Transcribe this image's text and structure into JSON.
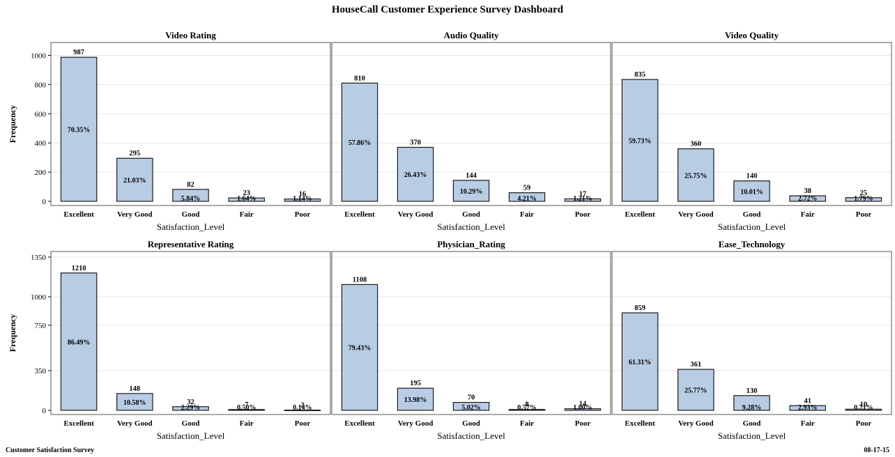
{
  "title": "HouseCall Customer Experience Survey Dashboard",
  "footer": {
    "left": "Customer Satisfaction Survey",
    "right": "08-17-15"
  },
  "colors": {
    "bar_fill": "#b8cce4",
    "bar_stroke": "#1a1a1a",
    "panel_border": "#555555",
    "grid": "#e6e6e6"
  },
  "chart_data": [
    {
      "type": "bar",
      "title": "Video Rating",
      "xlabel": "Satisfaction_Level",
      "ylabel": "Frequency",
      "categories": [
        "Excellent",
        "Very Good",
        "Good",
        "Fair",
        "Poor"
      ],
      "values": [
        987,
        295,
        82,
        23,
        16
      ],
      "percent_labels": [
        "70.35%",
        "21.03%",
        "5.84%",
        "1.64%",
        "1.14%"
      ],
      "ylim": [
        0,
        1050
      ],
      "yticks": [
        0,
        200,
        400,
        600,
        800,
        1000
      ]
    },
    {
      "type": "bar",
      "title": "Audio Quality",
      "xlabel": "Satisfaction_Level",
      "ylabel": "Frequency",
      "categories": [
        "Excellent",
        "Very Good",
        "Good",
        "Fair",
        "Poor"
      ],
      "values": [
        810,
        370,
        144,
        59,
        17
      ],
      "percent_labels": [
        "57.86%",
        "26.43%",
        "10.29%",
        "4.21%",
        "1.21%"
      ],
      "ylim": [
        0,
        1050
      ],
      "yticks": [
        0,
        200,
        400,
        600,
        800,
        1000
      ]
    },
    {
      "type": "bar",
      "title": "Video Quality",
      "xlabel": "Satisfaction_Level",
      "ylabel": "Frequency",
      "categories": [
        "Excellent",
        "Very Good",
        "Good",
        "Fair",
        "Poor"
      ],
      "values": [
        835,
        360,
        140,
        38,
        25
      ],
      "percent_labels": [
        "59.73%",
        "25.75%",
        "10.01%",
        "2.72%",
        "1.79%"
      ],
      "ylim": [
        0,
        1050
      ],
      "yticks": [
        0,
        200,
        400,
        600,
        800,
        1000
      ]
    },
    {
      "type": "bar",
      "title": "Representative Rating",
      "xlabel": "Satisfaction_Level",
      "ylabel": "Frequency",
      "categories": [
        "Excellent",
        "Very Good",
        "Good",
        "Fair",
        "Poor"
      ],
      "values": [
        1210,
        148,
        32,
        7,
        2
      ],
      "percent_labels": [
        "86.49%",
        "10.58%",
        "2.29%",
        "0.50%",
        "0.14%"
      ],
      "ylim": [
        0,
        1350
      ],
      "yticks": [
        0,
        350,
        750,
        1000,
        1350
      ]
    },
    {
      "type": "bar",
      "title": "Physician_Rating",
      "xlabel": "Satisfaction_Level",
      "ylabel": "Frequency",
      "categories": [
        "Excellent",
        "Very Good",
        "Good",
        "Fair",
        "Poor"
      ],
      "values": [
        1108,
        195,
        70,
        8,
        14
      ],
      "percent_labels": [
        "79.43%",
        "13.98%",
        "5.02%",
        "0.57%",
        "1.00%"
      ],
      "ylim": [
        0,
        1350
      ],
      "yticks": [
        0,
        350,
        750,
        1000,
        1350
      ]
    },
    {
      "type": "bar",
      "title": "Ease_Technology",
      "xlabel": "Satisfaction_Level",
      "ylabel": "Frequency",
      "categories": [
        "Excellent",
        "Very Good",
        "Good",
        "Fair",
        "Poor"
      ],
      "values": [
        859,
        361,
        130,
        41,
        10
      ],
      "percent_labels": [
        "61.31%",
        "25.77%",
        "9.28%",
        "2.93%",
        "0.71%"
      ],
      "ylim": [
        0,
        1350
      ],
      "yticks": [
        0,
        350,
        750,
        1000,
        1350
      ]
    }
  ]
}
